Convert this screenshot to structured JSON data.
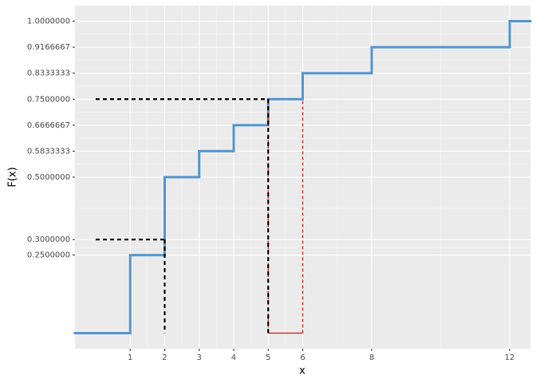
{
  "chart_data": {
    "type": "ecdf-step",
    "x_label": "x",
    "y_label": "F(x)",
    "x": [
      0,
      1,
      2,
      3,
      4,
      5,
      6,
      8,
      12
    ],
    "values": [
      0,
      0.25,
      0.5,
      0.5833333,
      0.6666667,
      0.75,
      0.8333333,
      0.9166667,
      1
    ],
    "color": "#5596d0",
    "xlim": [
      -0.6,
      12.6
    ],
    "ylim": [
      -0.05,
      1.05
    ],
    "xticks": [
      1,
      2,
      3,
      4,
      5,
      6,
      8,
      12
    ],
    "yticks": [
      {
        "value": 0.25,
        "label": "0.2500000"
      },
      {
        "value": 0.3,
        "label": "0.3000000"
      },
      {
        "value": 0.5,
        "label": "0.5000000"
      },
      {
        "value": 0.5833333,
        "label": "0.5833333"
      },
      {
        "value": 0.6666667,
        "label": "0.6666667"
      },
      {
        "value": 0.75,
        "label": "0.7500000"
      },
      {
        "value": 0.8333333,
        "label": "0.8333333"
      },
      {
        "value": 0.9166667,
        "label": "0.9166667"
      },
      {
        "value": 1,
        "label": "1.0000000"
      }
    ],
    "grid": true,
    "quantile_guides": [
      {
        "p": 0.3,
        "x": 2,
        "color": "#000000"
      },
      {
        "p": 0.75,
        "x": 5,
        "color": "#000000"
      }
    ],
    "interval": {
      "x": [
        5,
        6
      ],
      "p": 0.75,
      "color": "#cc3a3a"
    }
  }
}
